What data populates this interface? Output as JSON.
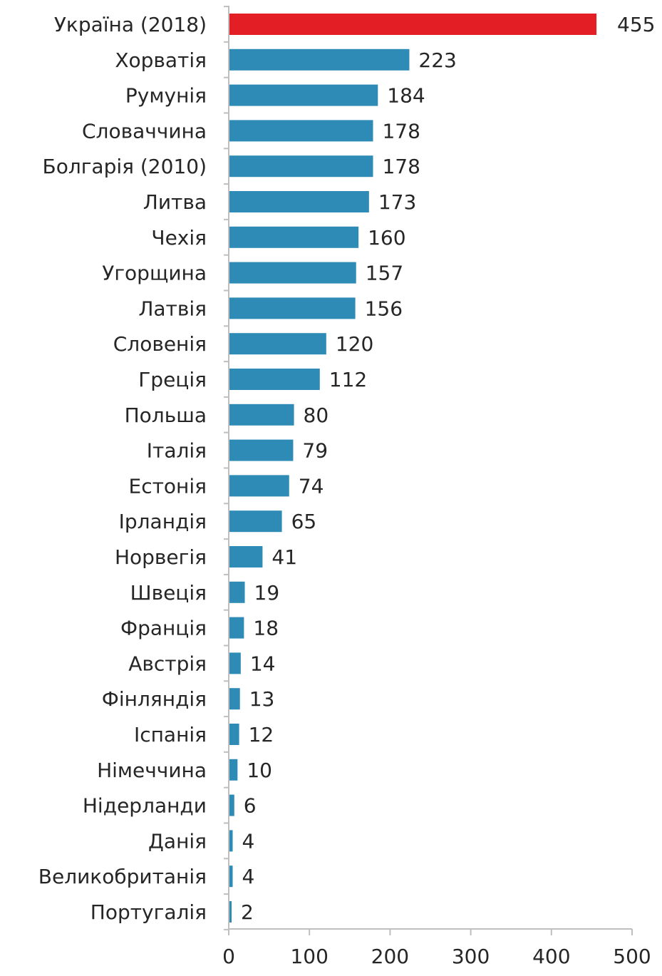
{
  "chart_data": {
    "type": "bar",
    "orientation": "horizontal",
    "title": "",
    "xlabel": "",
    "ylabel": "",
    "categories": [
      "Україна (2018)",
      "Хорватія",
      "Румунія",
      "Словаччина",
      "Болгарія (2010)",
      "Литва",
      "Чехія",
      "Угорщина",
      "Латвія",
      "Словенія",
      "Греція",
      "Польша",
      "Італія",
      "Естонія",
      "Ірландія",
      "Норвегія",
      "Швеція",
      "Франція",
      "Австрія",
      "Фінляндія",
      "Іспанія",
      "Німеччина",
      "Нідерланди",
      "Данія",
      "Великобританія",
      "Португалія"
    ],
    "values": [
      455,
      223,
      184,
      178,
      178,
      173,
      160,
      157,
      156,
      120,
      112,
      80,
      79,
      74,
      65,
      41,
      19,
      18,
      14,
      13,
      12,
      10,
      6,
      4,
      4,
      2
    ],
    "value_labels": [
      "455",
      "223",
      "184",
      "178",
      "178",
      "173",
      "160",
      "157",
      "156",
      "120",
      "112",
      "80",
      "79",
      "74",
      "65",
      "41",
      "19",
      "18",
      "14",
      "13",
      "12",
      "10",
      "6",
      "4",
      "4",
      "2"
    ],
    "xlim": [
      0,
      500
    ],
    "xticks": [
      0,
      100,
      200,
      300,
      400,
      500
    ],
    "xtick_labels": [
      "0",
      "100",
      "200",
      "300",
      "400",
      "500"
    ],
    "grid": false,
    "legend": "none",
    "colors": {
      "default_bar": "#2E8BB5",
      "highlight_bar": "#E31E24",
      "axis": "#BFBFBF",
      "text": "#262626"
    },
    "highlight_index": 0
  }
}
